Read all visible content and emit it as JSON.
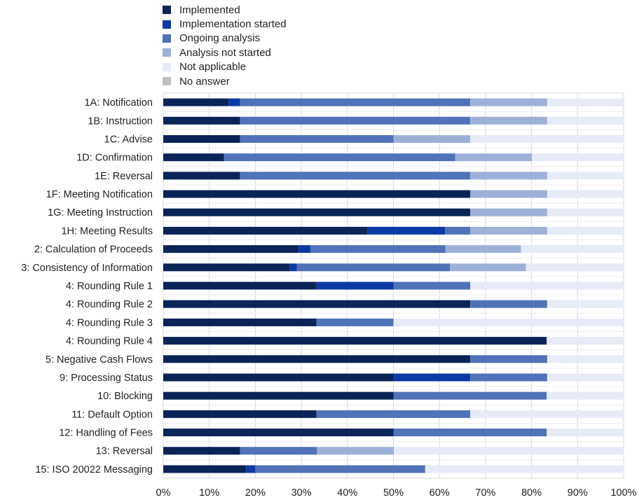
{
  "chart_data": {
    "type": "bar",
    "orientation": "horizontal",
    "stacked": true,
    "xlim": [
      0,
      100
    ],
    "x_ticks": [
      "0%",
      "10%",
      "20%",
      "30%",
      "40%",
      "50%",
      "60%",
      "70%",
      "80%",
      "90%",
      "100%"
    ],
    "grid": true,
    "legend_position": "top",
    "categories": [
      "1A: Notification",
      "1B: Instruction",
      "1C: Advise",
      "1D: Confirmation",
      "1E:  Reversal",
      "1F: Meeting Notification",
      "1G: Meeting Instruction",
      "1H: Meeting Results",
      "2: Calculation of Proceeds",
      "3: Consistency of Information",
      "4: Rounding Rule 1",
      "4: Rounding Rule 2",
      "4: Rounding Rule 3",
      "4: Rounding Rule 4",
      "5: Negative Cash Flows",
      "9: Processing Status",
      "10: Blocking",
      "11: Default Option",
      "12: Handling of Fees",
      "13: Reversal",
      "15: ISO 20022 Messaging"
    ],
    "series": [
      {
        "name": "Implemented",
        "color": "#0a2458",
        "values": [
          14.2,
          16.7,
          16.7,
          13.2,
          16.7,
          66.7,
          66.7,
          44.4,
          29.4,
          27.5,
          33.3,
          66.7,
          33.3,
          83.3,
          66.7,
          50.0,
          50.0,
          33.3,
          50.0,
          16.7,
          18.0
        ]
      },
      {
        "name": "Implementation started",
        "color": "#0a3aa6",
        "values": [
          2.5,
          0,
          0,
          0,
          0,
          0,
          0,
          16.8,
          2.6,
          1.5,
          16.7,
          0,
          0,
          0,
          0,
          16.7,
          0,
          0,
          0,
          0,
          2.0
        ]
      },
      {
        "name": "Ongoing analysis",
        "color": "#4f72b8",
        "values": [
          50.0,
          50.0,
          33.3,
          50.2,
          50.0,
          0,
          0,
          5.5,
          29.3,
          33.3,
          16.7,
          16.7,
          16.7,
          0,
          16.7,
          16.7,
          33.3,
          33.4,
          33.3,
          16.7,
          36.9
        ]
      },
      {
        "name": "Analysis not started",
        "color": "#9db1d8",
        "values": [
          16.7,
          16.7,
          16.7,
          16.7,
          16.7,
          16.7,
          16.7,
          16.7,
          16.4,
          16.5,
          0,
          0,
          0,
          0,
          0,
          0,
          0,
          0,
          0,
          16.7,
          0
        ]
      },
      {
        "name": "Not applicable",
        "color": "#e6ebf7",
        "values": [
          16.6,
          16.6,
          33.3,
          19.9,
          16.6,
          16.6,
          16.6,
          16.6,
          22.3,
          21.2,
          33.3,
          16.6,
          50.0,
          16.7,
          16.6,
          16.6,
          16.7,
          33.3,
          16.7,
          50.0,
          43.1
        ]
      },
      {
        "name": "No answer",
        "color": "#c0c0c0",
        "values": [
          0,
          0,
          0,
          0,
          0,
          0,
          0,
          0,
          0,
          0,
          0,
          0,
          0,
          0,
          0,
          0,
          0,
          0,
          0,
          0,
          0
        ]
      }
    ]
  }
}
